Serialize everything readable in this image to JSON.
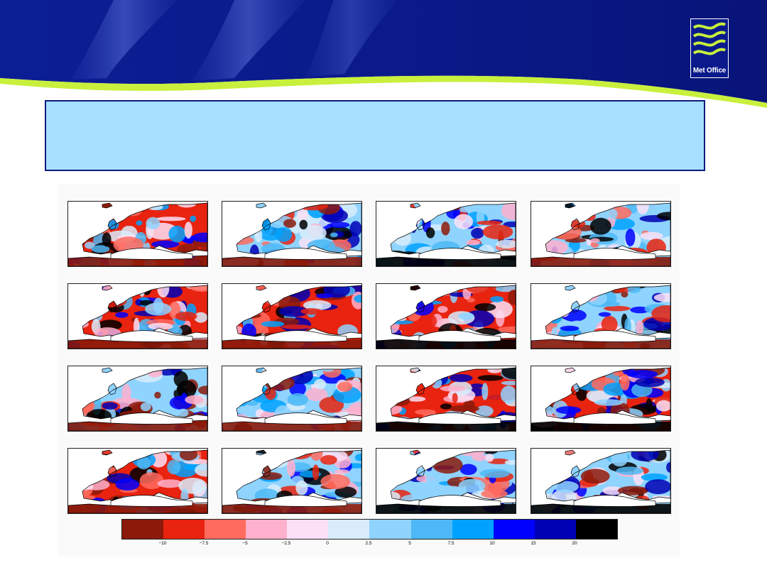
{
  "logo": {
    "text": "Met Office"
  },
  "title_box": {
    "text": ""
  },
  "figure": {
    "panel_count": 16,
    "rows": 4,
    "columns": 4
  },
  "colors": {
    "header_navy": "#0a1a8c",
    "header_lime": "#c8f03c",
    "title_box_fill": "#a6e0ff",
    "title_box_border": "#0f1a78",
    "land_mask": "#ffffff",
    "coastline": "#000000"
  },
  "colorbar": {
    "colors": [
      "#8b1a0a",
      "#e8230f",
      "#ff6b5e",
      "#ffb0cc",
      "#fbe0f6",
      "#d8ecfc",
      "#8fd3ff",
      "#4db8f5",
      "#00a2ff",
      "#0000ff",
      "#0000b4",
      "#000000"
    ],
    "tick_labels": [
      "−10",
      "−7.5",
      "−5",
      "−2.5",
      "0",
      "2.5",
      "5",
      "7.5",
      "10",
      "15",
      "20"
    ]
  }
}
